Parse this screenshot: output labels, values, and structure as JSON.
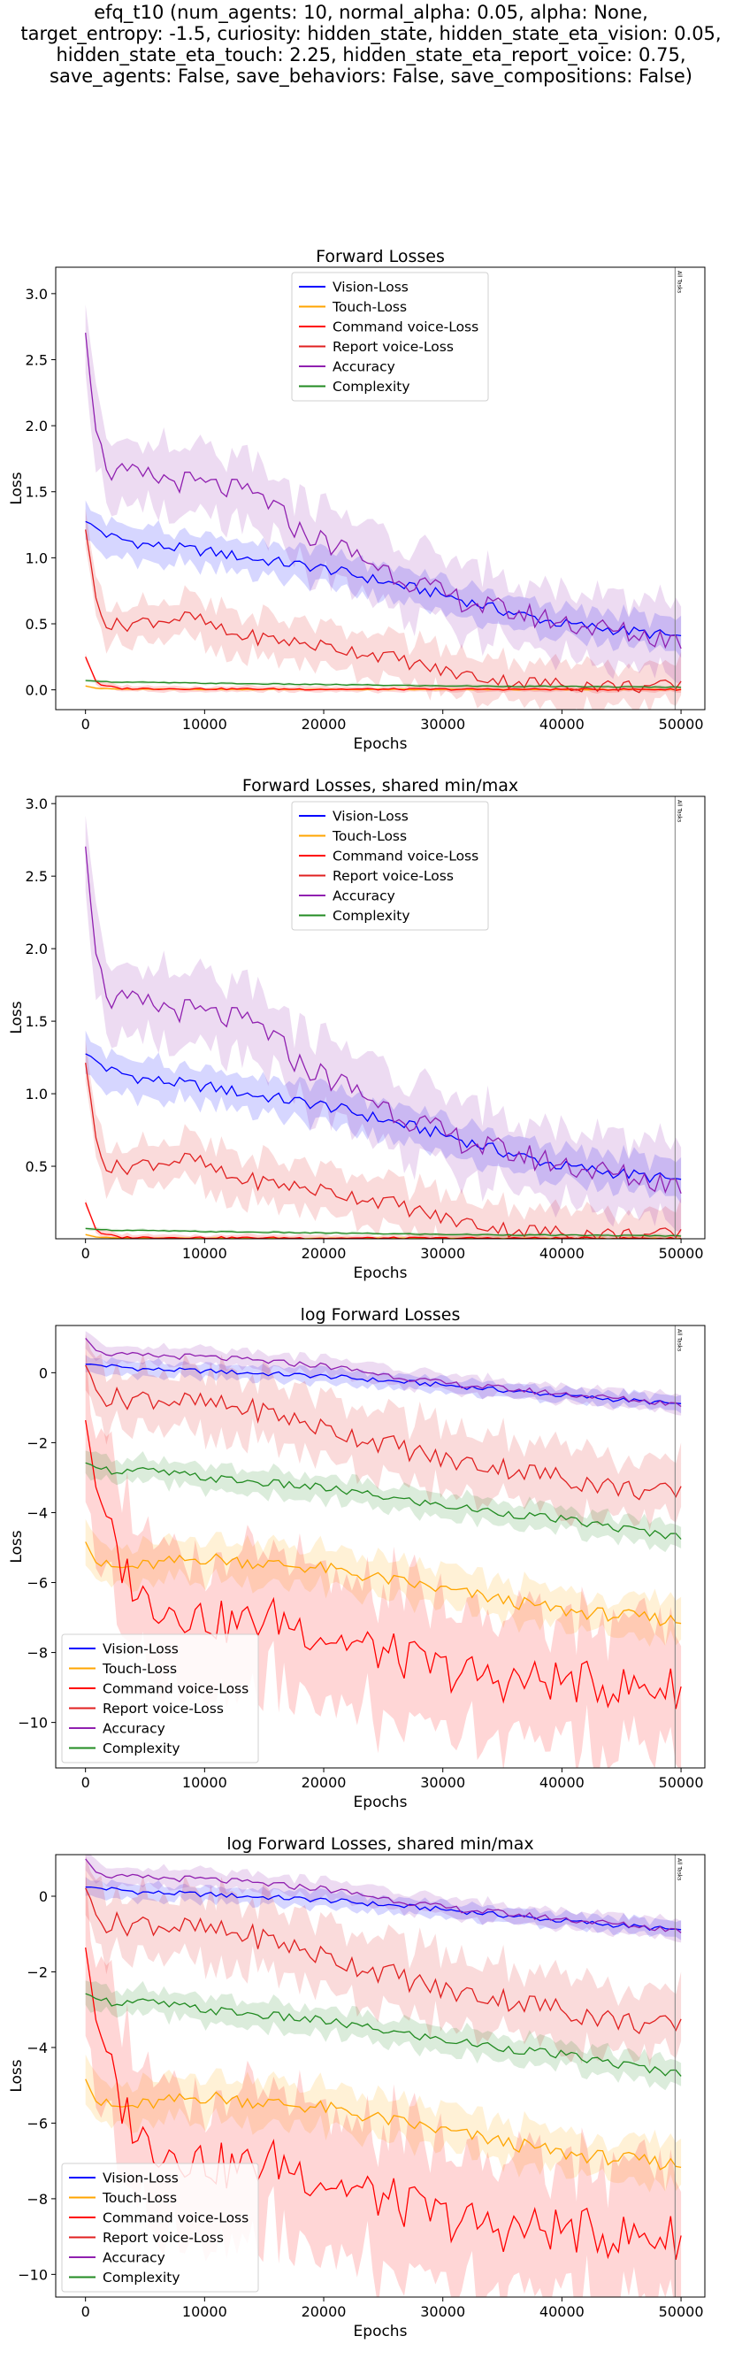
{
  "figure": {
    "title_lines": [
      "efq_t10 (num_agents: 10, normal_alpha: 0.05, alpha: None,",
      "target_entropy: -1.5, curiosity: hidden_state, hidden_state_eta_vision: 0.05,",
      "hidden_state_eta_touch: 2.25, hidden_state_eta_report_voice: 0.75,",
      "save_agents: False, save_behaviors: False, save_compositions: False)"
    ]
  },
  "chart_data": [
    {
      "type": "line",
      "title": "Forward Losses",
      "xlabel": "Epochs",
      "ylabel": "Loss",
      "xlim": [
        -2500,
        52000
      ],
      "ylim": [
        -0.15,
        3.2
      ],
      "xticks": [
        0,
        10000,
        20000,
        30000,
        40000,
        50000
      ],
      "yticks": [
        0.0,
        0.5,
        1.0,
        1.5,
        2.0,
        2.5,
        3.0
      ],
      "tick_precision": 1,
      "legend_position": "top-center",
      "vline": {
        "x": 49500,
        "label": "All Tasks"
      },
      "series": [
        {
          "name": "Vision-Loss",
          "color": "#0000ff",
          "x": [
            0,
            2000,
            5000,
            10000,
            15000,
            20000,
            25000,
            30000,
            35000,
            40000,
            45000,
            50000
          ],
          "y": [
            1.28,
            1.16,
            1.1,
            1.05,
            0.98,
            0.92,
            0.82,
            0.72,
            0.6,
            0.5,
            0.45,
            0.4
          ],
          "band": 0.12
        },
        {
          "name": "Touch-Loss",
          "color": "#ffa500",
          "x": [
            0,
            1000,
            3000,
            10000,
            20000,
            30000,
            40000,
            50000
          ],
          "y": [
            0.03,
            0.01,
            0.005,
            0.004,
            0.003,
            0.002,
            0.002,
            0.002
          ],
          "band": 0.008
        },
        {
          "name": "Command voice-Loss",
          "color": "#ff0000",
          "x": [
            0,
            1000,
            3000,
            10000,
            20000,
            30000,
            40000,
            50000
          ],
          "y": [
            0.25,
            0.04,
            0.01,
            0.008,
            0.005,
            0.004,
            0.004,
            0.003
          ],
          "band": 0.02
        },
        {
          "name": "Report voice-Loss",
          "color": "#e02020",
          "x": [
            0,
            1000,
            2000,
            5000,
            9000,
            12000,
            16000,
            20000,
            25000,
            30000,
            35000,
            40000,
            45000,
            50000
          ],
          "y": [
            1.22,
            0.62,
            0.48,
            0.52,
            0.55,
            0.42,
            0.38,
            0.33,
            0.26,
            0.14,
            0.07,
            0.04,
            0.03,
            0.02
          ],
          "band": 0.16
        },
        {
          "name": "Accuracy",
          "color": "#9020b0",
          "x": [
            0,
            800,
            2000,
            4000,
            8000,
            12000,
            15000,
            18000,
            22000,
            26000,
            30000,
            34000,
            38000,
            42000,
            46000,
            50000
          ],
          "y": [
            2.72,
            2.0,
            1.65,
            1.62,
            1.58,
            1.52,
            1.45,
            1.2,
            1.05,
            0.88,
            0.72,
            0.62,
            0.55,
            0.48,
            0.42,
            0.38
          ],
          "band": 0.26
        },
        {
          "name": "Complexity",
          "color": "#228b22",
          "x": [
            0,
            2000,
            10000,
            20000,
            30000,
            40000,
            50000
          ],
          "y": [
            0.07,
            0.06,
            0.05,
            0.04,
            0.03,
            0.025,
            0.02
          ],
          "band": 0.01
        }
      ]
    },
    {
      "type": "line",
      "title": "Forward Losses, shared min/max",
      "xlabel": "Epochs",
      "ylabel": "Loss",
      "xlim": [
        -2500,
        52000
      ],
      "ylim": [
        0.0,
        3.05
      ],
      "xticks": [
        0,
        10000,
        20000,
        30000,
        40000,
        50000
      ],
      "yticks": [
        0.5,
        1.0,
        1.5,
        2.0,
        2.5,
        3.0
      ],
      "tick_precision": 1,
      "legend_position": "top-center",
      "vline": {
        "x": 49500,
        "label": "All Tasks"
      },
      "series": [
        {
          "name": "Vision-Loss",
          "color": "#0000ff",
          "x": [
            0,
            2000,
            5000,
            10000,
            15000,
            20000,
            25000,
            30000,
            35000,
            40000,
            45000,
            50000
          ],
          "y": [
            1.28,
            1.16,
            1.1,
            1.05,
            0.98,
            0.92,
            0.82,
            0.72,
            0.6,
            0.5,
            0.45,
            0.4
          ],
          "band": 0.12
        },
        {
          "name": "Touch-Loss",
          "color": "#ffa500",
          "x": [
            0,
            1000,
            3000,
            10000,
            20000,
            30000,
            40000,
            50000
          ],
          "y": [
            0.03,
            0.01,
            0.005,
            0.004,
            0.003,
            0.002,
            0.002,
            0.002
          ],
          "band": 0.008
        },
        {
          "name": "Command voice-Loss",
          "color": "#ff0000",
          "x": [
            0,
            1000,
            3000,
            10000,
            20000,
            30000,
            40000,
            50000
          ],
          "y": [
            0.25,
            0.04,
            0.01,
            0.008,
            0.005,
            0.004,
            0.004,
            0.003
          ],
          "band": 0.02
        },
        {
          "name": "Report voice-Loss",
          "color": "#e02020",
          "x": [
            0,
            1000,
            2000,
            5000,
            9000,
            12000,
            16000,
            20000,
            25000,
            30000,
            35000,
            40000,
            45000,
            50000
          ],
          "y": [
            1.22,
            0.62,
            0.48,
            0.52,
            0.55,
            0.42,
            0.38,
            0.33,
            0.26,
            0.14,
            0.07,
            0.04,
            0.03,
            0.02
          ],
          "band": 0.16
        },
        {
          "name": "Accuracy",
          "color": "#9020b0",
          "x": [
            0,
            800,
            2000,
            4000,
            8000,
            12000,
            15000,
            18000,
            22000,
            26000,
            30000,
            34000,
            38000,
            42000,
            46000,
            50000
          ],
          "y": [
            2.72,
            2.0,
            1.65,
            1.62,
            1.58,
            1.52,
            1.45,
            1.2,
            1.05,
            0.88,
            0.72,
            0.62,
            0.55,
            0.48,
            0.42,
            0.38
          ],
          "band": 0.26
        },
        {
          "name": "Complexity",
          "color": "#228b22",
          "x": [
            0,
            2000,
            10000,
            20000,
            30000,
            40000,
            50000
          ],
          "y": [
            0.07,
            0.06,
            0.05,
            0.04,
            0.03,
            0.025,
            0.02
          ],
          "band": 0.01
        }
      ]
    },
    {
      "type": "line",
      "title": "log Forward Losses",
      "xlabel": "Epochs",
      "ylabel": "Loss",
      "xlim": [
        -2500,
        52000
      ],
      "ylim": [
        -11.3,
        1.35
      ],
      "xticks": [
        0,
        10000,
        20000,
        30000,
        40000,
        50000
      ],
      "yticks": [
        0,
        -2,
        -4,
        -6,
        -8,
        -10
      ],
      "tick_precision": 0,
      "legend_position": "bottom-left",
      "vline": {
        "x": 49500,
        "label": "All Tasks"
      },
      "series": [
        {
          "name": "Vision-Loss",
          "color": "#0000ff",
          "x": [
            0,
            5000,
            10000,
            20000,
            30000,
            40000,
            50000
          ],
          "y": [
            0.25,
            0.1,
            0.05,
            -0.1,
            -0.35,
            -0.65,
            -0.9
          ],
          "band": 0.2
        },
        {
          "name": "Touch-Loss",
          "color": "#ffa500",
          "x": [
            0,
            1000,
            3000,
            10000,
            20000,
            30000,
            40000,
            50000
          ],
          "y": [
            -4.8,
            -5.5,
            -5.6,
            -5.3,
            -5.6,
            -6.2,
            -6.8,
            -7.1
          ],
          "band": 0.55
        },
        {
          "name": "Command voice-Loss",
          "color": "#ff0000",
          "x": [
            0,
            1000,
            3000,
            5000,
            8000,
            12000,
            16000,
            20000,
            25000,
            30000,
            35000,
            40000,
            45000,
            50000
          ],
          "y": [
            -1.3,
            -3.5,
            -5.5,
            -6.5,
            -6.8,
            -7.2,
            -7.0,
            -7.5,
            -8.0,
            -8.5,
            -8.8,
            -8.8,
            -9.0,
            -9.0
          ],
          "band": 1.8
        },
        {
          "name": "Report voice-Loss",
          "color": "#e02020",
          "x": [
            0,
            1000,
            2000,
            5000,
            10000,
            15000,
            20000,
            25000,
            30000,
            35000,
            40000,
            45000,
            50000
          ],
          "y": [
            0.25,
            -0.6,
            -0.75,
            -0.7,
            -0.9,
            -1.1,
            -1.6,
            -2.0,
            -2.5,
            -2.7,
            -3.0,
            -3.3,
            -3.5
          ],
          "band": 0.9
        },
        {
          "name": "Accuracy",
          "color": "#9020b0",
          "x": [
            0,
            1000,
            3000,
            10000,
            20000,
            30000,
            40000,
            50000
          ],
          "y": [
            1.0,
            0.6,
            0.5,
            0.45,
            0.2,
            -0.3,
            -0.6,
            -0.9
          ],
          "band": 0.25
        },
        {
          "name": "Complexity",
          "color": "#228b22",
          "x": [
            0,
            2000,
            5000,
            10000,
            20000,
            30000,
            40000,
            50000
          ],
          "y": [
            -2.6,
            -2.8,
            -2.8,
            -3.0,
            -3.3,
            -3.8,
            -4.2,
            -4.7
          ],
          "band": 0.35
        }
      ]
    },
    {
      "type": "line",
      "title": "log Forward Losses, shared min/max",
      "xlabel": "Epochs",
      "ylabel": "Loss",
      "xlim": [
        -2500,
        52000
      ],
      "ylim": [
        -10.6,
        1.1
      ],
      "xticks": [
        0,
        10000,
        20000,
        30000,
        40000,
        50000
      ],
      "yticks": [
        0,
        -2,
        -4,
        -6,
        -8,
        -10
      ],
      "tick_precision": 0,
      "legend_position": "bottom-left",
      "vline": {
        "x": 49500,
        "label": "All Tasks"
      },
      "series": [
        {
          "name": "Vision-Loss",
          "color": "#0000ff",
          "x": [
            0,
            5000,
            10000,
            20000,
            30000,
            40000,
            50000
          ],
          "y": [
            0.25,
            0.1,
            0.05,
            -0.1,
            -0.35,
            -0.65,
            -0.9
          ],
          "band": 0.2
        },
        {
          "name": "Touch-Loss",
          "color": "#ffa500",
          "x": [
            0,
            1000,
            3000,
            10000,
            20000,
            30000,
            40000,
            50000
          ],
          "y": [
            -4.8,
            -5.5,
            -5.6,
            -5.3,
            -5.6,
            -6.2,
            -6.8,
            -7.1
          ],
          "band": 0.55
        },
        {
          "name": "Command voice-Loss",
          "color": "#ff0000",
          "x": [
            0,
            1000,
            3000,
            5000,
            8000,
            12000,
            16000,
            20000,
            25000,
            30000,
            35000,
            40000,
            45000,
            50000
          ],
          "y": [
            -1.3,
            -3.5,
            -5.5,
            -6.5,
            -6.8,
            -7.2,
            -7.0,
            -7.5,
            -8.0,
            -8.5,
            -8.8,
            -8.8,
            -9.0,
            -9.0
          ],
          "band": 1.8
        },
        {
          "name": "Report voice-Loss",
          "color": "#e02020",
          "x": [
            0,
            1000,
            2000,
            5000,
            10000,
            15000,
            20000,
            25000,
            30000,
            35000,
            40000,
            45000,
            50000
          ],
          "y": [
            0.25,
            -0.6,
            -0.75,
            -0.7,
            -0.9,
            -1.1,
            -1.6,
            -2.0,
            -2.5,
            -2.7,
            -3.0,
            -3.3,
            -3.5
          ],
          "band": 0.9
        },
        {
          "name": "Accuracy",
          "color": "#9020b0",
          "x": [
            0,
            1000,
            3000,
            10000,
            20000,
            30000,
            40000,
            50000
          ],
          "y": [
            1.0,
            0.6,
            0.5,
            0.45,
            0.2,
            -0.3,
            -0.6,
            -0.9
          ],
          "band": 0.25
        },
        {
          "name": "Complexity",
          "color": "#228b22",
          "x": [
            0,
            2000,
            5000,
            10000,
            20000,
            30000,
            40000,
            50000
          ],
          "y": [
            -2.6,
            -2.8,
            -2.8,
            -3.0,
            -3.3,
            -3.8,
            -4.2,
            -4.7
          ],
          "band": 0.35
        }
      ]
    }
  ]
}
